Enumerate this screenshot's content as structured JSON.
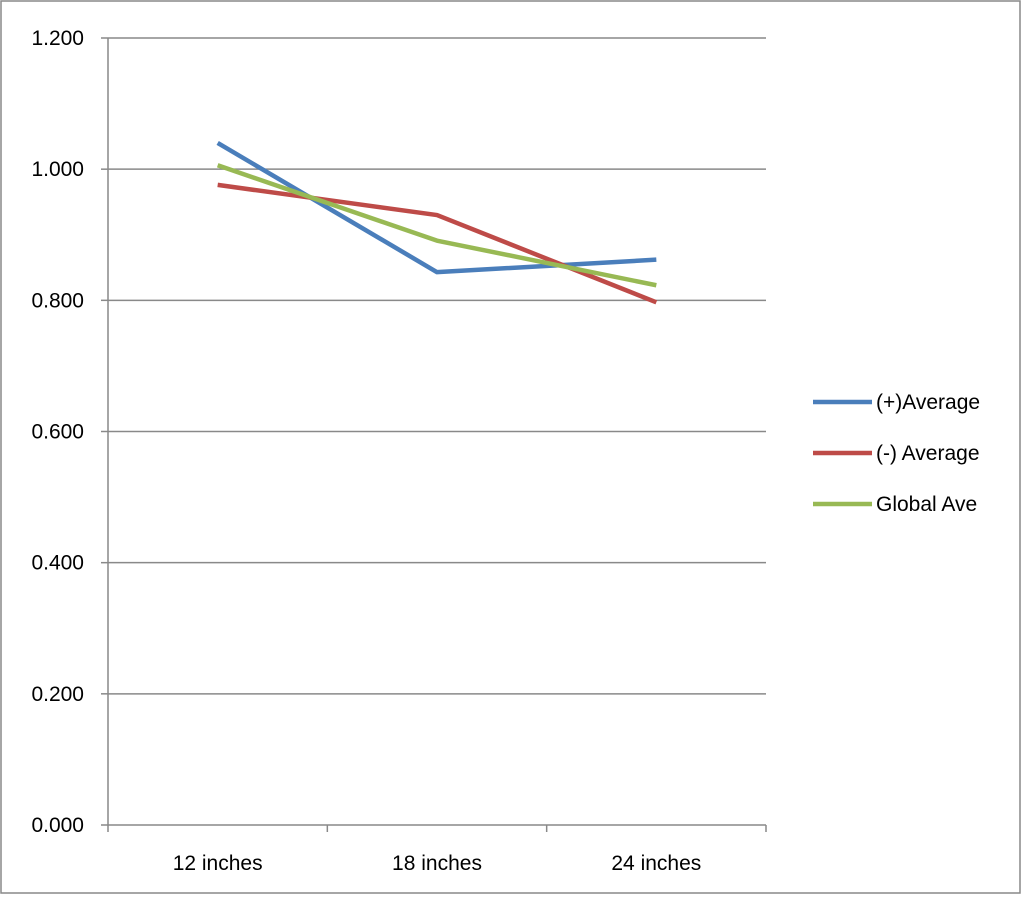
{
  "chart_data": {
    "type": "line",
    "title": "",
    "xlabel": "",
    "ylabel": "",
    "categories": [
      "12 inches",
      "18 inches",
      "24 inches"
    ],
    "y_ticks": [
      "0.000",
      "0.200",
      "0.400",
      "0.600",
      "0.800",
      "1.000",
      "1.200"
    ],
    "ylim": [
      0,
      1.2
    ],
    "grid": true,
    "legend": "right",
    "series": [
      {
        "name": "(+)Average",
        "color": "#4A7EBB",
        "values": [
          1.04,
          0.843,
          0.862
        ]
      },
      {
        "name": "(-) Average",
        "color": "#BE4B48",
        "values": [
          0.976,
          0.93,
          0.797
        ]
      },
      {
        "name": "Global Ave",
        "color": "#98B954",
        "values": [
          1.006,
          0.891,
          0.823
        ]
      }
    ]
  },
  "colors": {
    "gridline": "#898989",
    "axis": "#898989",
    "frame": "#898989"
  }
}
